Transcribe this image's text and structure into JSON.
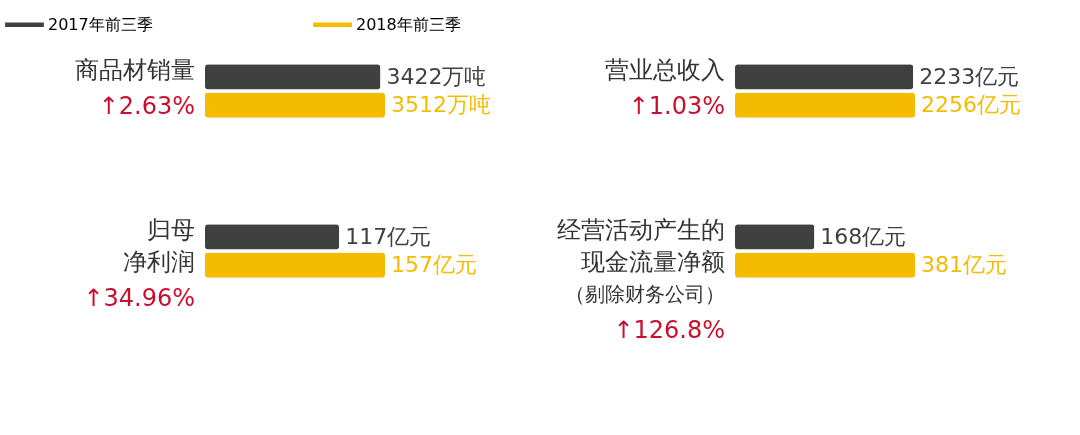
{
  "chart_data": [
    {
      "type": "bar",
      "orientation": "horizontal",
      "title": "商品材销量",
      "annotations": [
        "↑2.63%"
      ],
      "categories": [
        null
      ],
      "legend": "top",
      "series": [
        {
          "name": "2017年前三季",
          "color": "#404040",
          "values": [
            3422
          ],
          "value_labels": [
            "3422万吨"
          ]
        },
        {
          "name": "2018年前三季",
          "color": "#f5bb00",
          "values": [
            3512
          ],
          "value_labels": [
            "3512万吨"
          ]
        }
      ]
    },
    {
      "type": "bar",
      "orientation": "horizontal",
      "title": "营业总收入",
      "annotations": [
        "↑1.03%"
      ],
      "categories": [
        null
      ],
      "series": [
        {
          "color": "#404040",
          "values": [
            2233
          ],
          "value_labels": [
            "2233亿元"
          ]
        },
        {
          "color": "#f5bb00",
          "values": [
            2256
          ],
          "value_labels": [
            "2256亿元"
          ]
        }
      ]
    },
    {
      "type": "bar",
      "orientation": "horizontal",
      "title": "归母净利润",
      "annotations": [
        "↑34.96%"
      ],
      "categories": [
        null
      ],
      "series": [
        {
          "color": "#404040",
          "values": [
            117
          ],
          "value_labels": [
            "117亿元"
          ]
        },
        {
          "color": "#f5bb00",
          "values": [
            157
          ],
          "value_labels": [
            "157亿元"
          ]
        }
      ]
    },
    {
      "type": "bar",
      "orientation": "horizontal",
      "title": "经营活动产生的现金流量净额",
      "subtitle": "（剔除财务公司）",
      "annotations": [
        "↑126.8%"
      ],
      "categories": [
        null
      ],
      "series": [
        {
          "color": "#404040",
          "values": [
            168
          ],
          "value_labels": [
            "168亿元"
          ]
        },
        {
          "color": "#f5bb00",
          "values": [
            381
          ],
          "value_labels": [
            "381亿元"
          ]
        }
      ]
    }
  ]
}
